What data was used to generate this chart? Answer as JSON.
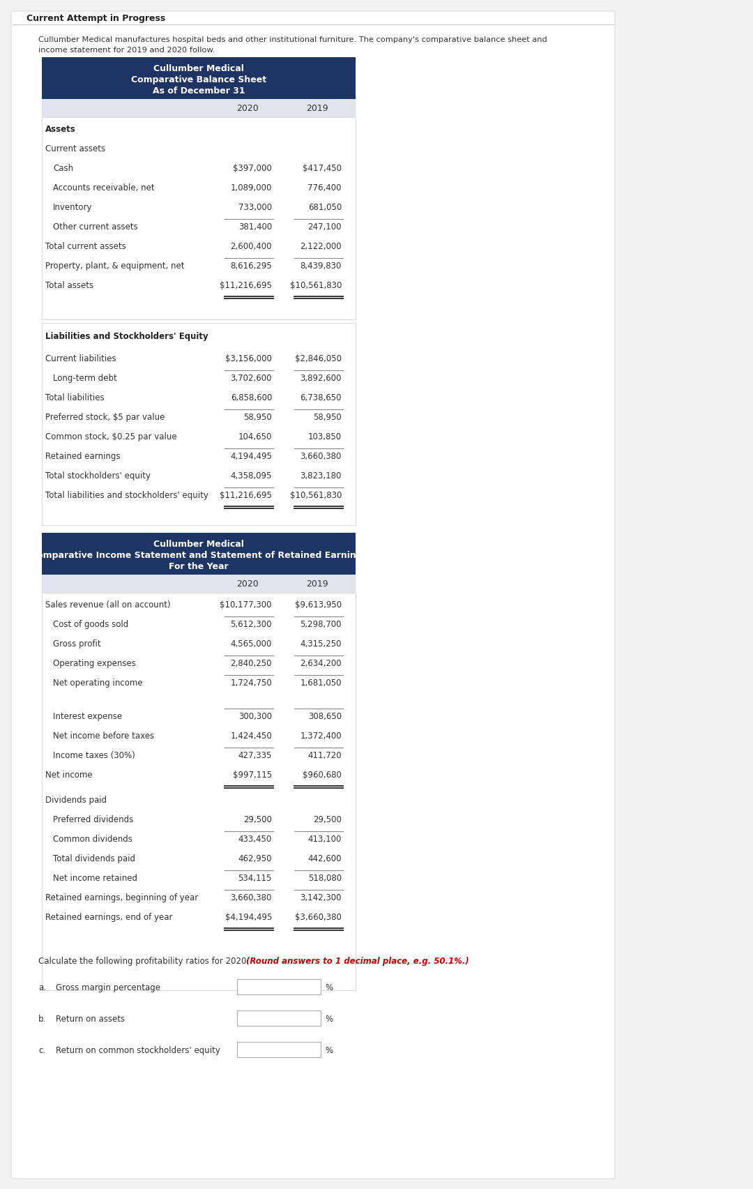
{
  "page_bg": "#f2f2f2",
  "content_bg": "#ffffff",
  "header_bg": "#1e3464",
  "header_text_color": "#ffffff",
  "subheader_bg": "#e2e4ec",
  "label_color": "#444444",
  "intro_text_line1": "Cullumber Medical manufactures hospital beds and other institutional furniture. The company's comparative balance sheet and",
  "intro_text_line2": "income statement for 2019 and 2020 follow.",
  "balance_sheet_title": [
    "Cullumber Medical",
    "Comparative Balance Sheet",
    "As of December 31"
  ],
  "income_stmt_title_line1": "Cullumber Medical",
  "income_stmt_title_line2": "Comparative Income Statement and Statement of Retained Earnings",
  "income_stmt_title_line3": "For the Year",
  "col2020_label": "2020",
  "col2019_label": "2019",
  "assets_header": "Assets",
  "assets_subheader": "Current assets",
  "asset_rows": [
    {
      "label": "Cash",
      "v20": "$397,000",
      "v19": "$417,450",
      "indent": 16,
      "line_before": false,
      "line_after": false,
      "double_after": false
    },
    {
      "label": "Accounts receivable, net",
      "v20": "1,089,000",
      "v19": "776,400",
      "indent": 16,
      "line_before": false,
      "line_after": false,
      "double_after": false
    },
    {
      "label": "Inventory",
      "v20": "733,000",
      "v19": "681,050",
      "indent": 16,
      "line_before": false,
      "line_after": false,
      "double_after": false
    },
    {
      "label": "Other current assets",
      "v20": "381,400",
      "v19": "247,100",
      "indent": 16,
      "line_before": true,
      "line_after": false,
      "double_after": false
    },
    {
      "label": "Total current assets",
      "v20": "2,600,400",
      "v19": "2,122,000",
      "indent": 5,
      "line_before": false,
      "line_after": false,
      "double_after": false
    },
    {
      "label": "Property, plant, & equipment, net",
      "v20": "8,616,295",
      "v19": "8,439,830",
      "indent": 5,
      "line_before": true,
      "line_after": false,
      "double_after": false
    },
    {
      "label": "Total assets",
      "v20": "$11,216,695",
      "v19": "$10,561,830",
      "indent": 5,
      "line_before": false,
      "line_after": true,
      "double_after": true
    }
  ],
  "liab_header": "Liabilities and Stockholders' Equity",
  "liab_rows": [
    {
      "label": "Current liabilities",
      "v20": "$3,156,000",
      "v19": "$2,846,050",
      "indent": 5,
      "line_before": false,
      "line_after": false,
      "double_after": false
    },
    {
      "label": "Long-term debt",
      "v20": "3,702,600",
      "v19": "3,892,600",
      "indent": 16,
      "line_before": true,
      "line_after": false,
      "double_after": false
    },
    {
      "label": "Total liabilities",
      "v20": "6,858,600",
      "v19": "6,738,650",
      "indent": 5,
      "line_before": false,
      "line_after": true,
      "double_after": false
    },
    {
      "label": "Preferred stock, $5 par value",
      "v20": "58,950",
      "v19": "58,950",
      "indent": 5,
      "line_before": false,
      "line_after": false,
      "double_after": false
    },
    {
      "label": "Common stock, $0.25 par value",
      "v20": "104,650",
      "v19": "103,850",
      "indent": 5,
      "line_before": false,
      "line_after": false,
      "double_after": false
    },
    {
      "label": "Retained earnings",
      "v20": "4,194,495",
      "v19": "3,660,380",
      "indent": 5,
      "line_before": true,
      "line_after": false,
      "double_after": false
    },
    {
      "label": "Total stockholders' equity",
      "v20": "4,358,095",
      "v19": "3,823,180",
      "indent": 5,
      "line_before": false,
      "line_after": true,
      "double_after": false
    },
    {
      "label": "Total liabilities and stockholders' equity",
      "v20": "$11,216,695",
      "v19": "$10,561,830",
      "indent": 5,
      "line_before": false,
      "line_after": true,
      "double_after": true
    }
  ],
  "inc_rows_1": [
    {
      "label": "Sales revenue (all on account)",
      "v20": "$10,177,300",
      "v19": "$9,613,950",
      "indent": 5,
      "line_before": false,
      "line_after": false,
      "double_after": false
    },
    {
      "label": "Cost of goods sold",
      "v20": "5,612,300",
      "v19": "5,298,700",
      "indent": 16,
      "line_before": true,
      "line_after": false,
      "double_after": false
    },
    {
      "label": "Gross profit",
      "v20": "4,565,000",
      "v19": "4,315,250",
      "indent": 16,
      "line_before": false,
      "line_after": true,
      "double_after": false
    },
    {
      "label": "Operating expenses",
      "v20": "2,840,250",
      "v19": "2,634,200",
      "indent": 16,
      "line_before": false,
      "line_after": true,
      "double_after": false
    },
    {
      "label": "Net operating income",
      "v20": "1,724,750",
      "v19": "1,681,050",
      "indent": 16,
      "line_before": false,
      "line_after": false,
      "double_after": false
    }
  ],
  "inc_rows_2": [
    {
      "label": "Interest expense",
      "v20": "300,300",
      "v19": "308,650",
      "indent": 16,
      "line_before": true,
      "line_after": false,
      "double_after": false
    },
    {
      "label": "Net income before taxes",
      "v20": "1,424,450",
      "v19": "1,372,400",
      "indent": 16,
      "line_before": false,
      "line_after": false,
      "double_after": false
    },
    {
      "label": "Income taxes (30%)",
      "v20": "427,335",
      "v19": "411,720",
      "indent": 16,
      "line_before": true,
      "line_after": false,
      "double_after": false
    },
    {
      "label": "Net income",
      "v20": "$997,115",
      "v19": "$960,680",
      "indent": 5,
      "line_before": false,
      "line_after": true,
      "double_after": true
    }
  ],
  "div_header": "Dividends paid",
  "div_rows": [
    {
      "label": "Preferred dividends",
      "v20": "29,500",
      "v19": "29,500",
      "indent": 16,
      "line_before": false,
      "line_after": false,
      "double_after": false
    },
    {
      "label": "Common dividends",
      "v20": "433,450",
      "v19": "413,100",
      "indent": 16,
      "line_before": true,
      "line_after": false,
      "double_after": false
    },
    {
      "label": "Total dividends paid",
      "v20": "462,950",
      "v19": "442,600",
      "indent": 16,
      "line_before": false,
      "line_after": true,
      "double_after": false
    },
    {
      "label": "Net income retained",
      "v20": "534,115",
      "v19": "518,080",
      "indent": 16,
      "line_before": false,
      "line_after": false,
      "double_after": false
    },
    {
      "label": "Retained earnings, beginning of year",
      "v20": "3,660,380",
      "v19": "3,142,300",
      "indent": 5,
      "line_before": true,
      "line_after": false,
      "double_after": false
    },
    {
      "label": "Retained earnings, end of year",
      "v20": "$4,194,495",
      "v19": "$3,660,380",
      "indent": 5,
      "line_before": false,
      "line_after": true,
      "double_after": true
    }
  ],
  "calc_normal": "Calculate the following profitability ratios for 2020.",
  "calc_bold_italic": "(Round answers to 1 decimal place, e.g. 50.1%.)",
  "ratios": [
    {
      "letter": "a.",
      "label": "Gross margin percentage"
    },
    {
      "letter": "b.",
      "label": "Return on assets"
    },
    {
      "letter": "c.",
      "label": "Return on common stockholders' equity"
    }
  ],
  "current_attempt_text": "Current Attempt in Progress"
}
